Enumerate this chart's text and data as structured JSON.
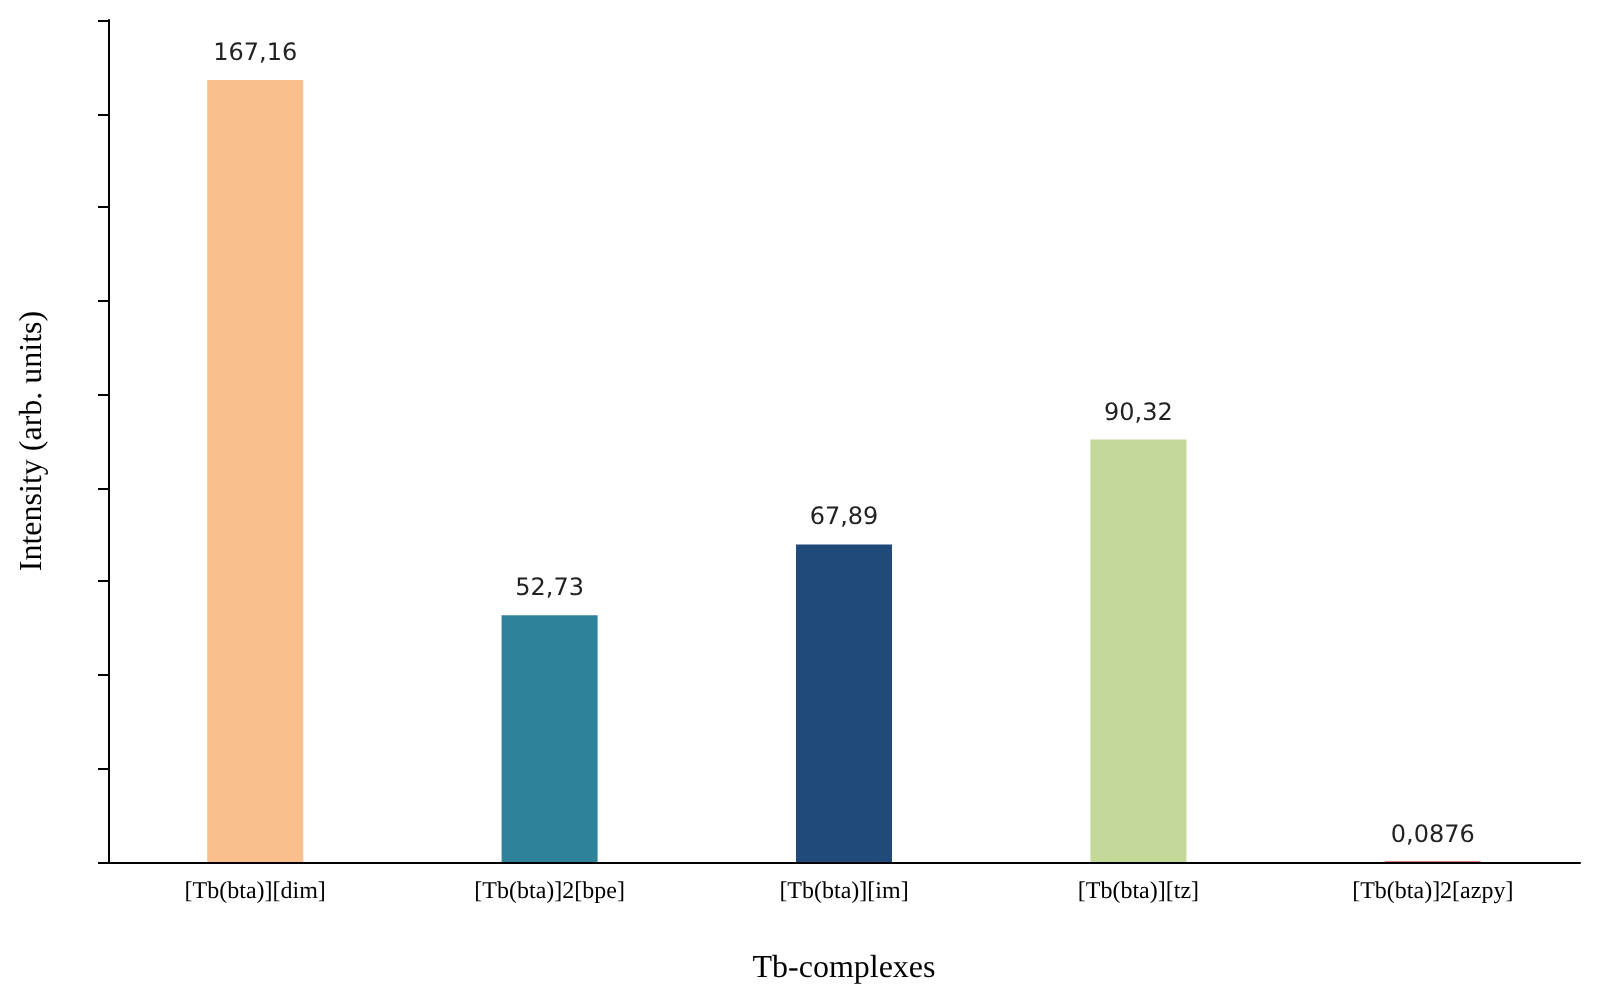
{
  "chart_data": {
    "type": "bar",
    "xlabel": "Tb-complexes",
    "ylabel": "Intensity (arb. units)",
    "categories": [
      "[Tb(bta)][dim]",
      "[Tb(bta)]2[bpe]",
      "[Tb(bta)][im]",
      "[Tb(bta)][tz]",
      "[Tb(bta)]2[azpy]"
    ],
    "values": [
      167.16,
      52.73,
      67.89,
      90.32,
      0.0876
    ],
    "colors": [
      "#f9c08e",
      "#2e8299",
      "#1f4a7a",
      "#c4d89a",
      "#c00000"
    ],
    "value_labels": [
      "167,16",
      "52,73",
      "67,89",
      "90,32",
      "0,0876"
    ],
    "ylim": [
      0,
      180
    ],
    "yticks": [
      {
        "value": 0,
        "label": null
      },
      {
        "value": 20,
        "label": null
      },
      {
        "value": 40,
        "label": null
      },
      {
        "value": 60,
        "label": null
      },
      {
        "value": 80,
        "label": null
      },
      {
        "value": 100,
        "label": null
      },
      {
        "value": 120,
        "label": null
      },
      {
        "value": 140,
        "label": null
      },
      {
        "value": 160,
        "label": null
      },
      {
        "value": 180,
        "label": null
      }
    ],
    "tick_labels": "x",
    "grid": false
  }
}
